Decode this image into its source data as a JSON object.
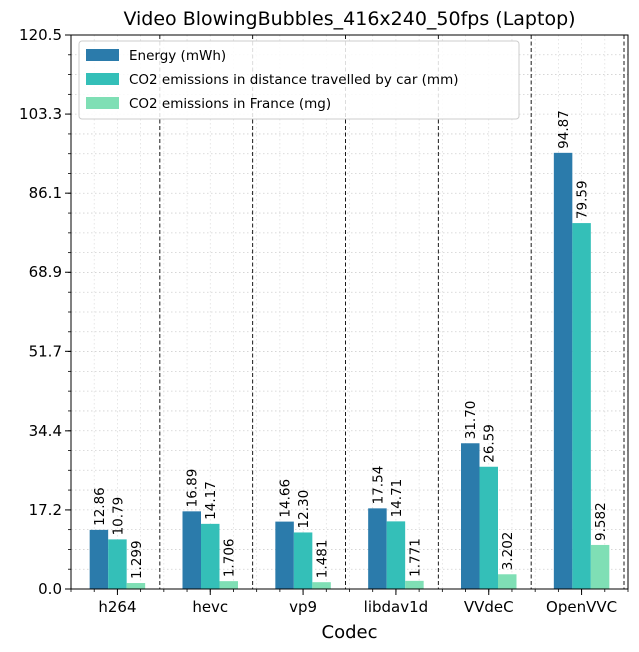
{
  "chart_data": {
    "type": "bar",
    "title": "Video BlowingBubbles_416x240_50fps (Laptop)",
    "xlabel": "Codec",
    "ylabel": "",
    "categories": [
      "h264",
      "hevc",
      "vp9",
      "libdav1d",
      "VVdeC",
      "OpenVVC"
    ],
    "series": [
      {
        "name": "Energy (mWh)",
        "color": "#2b7bab",
        "values": [
          12.86,
          16.89,
          14.66,
          17.54,
          31.7,
          94.87
        ],
        "labels": [
          "12.86",
          "16.89",
          "14.66",
          "17.54",
          "31.70",
          "94.87"
        ]
      },
      {
        "name": "CO2 emissions in distance travelled by car (mm)",
        "color": "#34bfb8",
        "values": [
          10.79,
          14.17,
          12.3,
          14.71,
          26.59,
          79.59
        ],
        "labels": [
          "10.79",
          "14.17",
          "12.30",
          "14.71",
          "26.59",
          "79.59"
        ]
      },
      {
        "name": "CO2 emissions in France (mg)",
        "color": "#7fdfb5",
        "values": [
          1.299,
          1.706,
          1.481,
          1.771,
          3.202,
          9.582
        ],
        "labels": [
          "1.299",
          "1.706",
          "1.481",
          "1.771",
          "3.202",
          "9.582"
        ]
      }
    ],
    "ylim": [
      0,
      120.5
    ],
    "yticks": [
      0.0,
      17.2,
      34.4,
      51.7,
      68.9,
      86.1,
      103.3,
      120.5
    ],
    "ytick_labels": [
      "0.0",
      "17.2",
      "34.4",
      "51.7",
      "68.9",
      "86.1",
      "103.3",
      "120.5"
    ],
    "grid": true,
    "legend_position": "top-left"
  }
}
